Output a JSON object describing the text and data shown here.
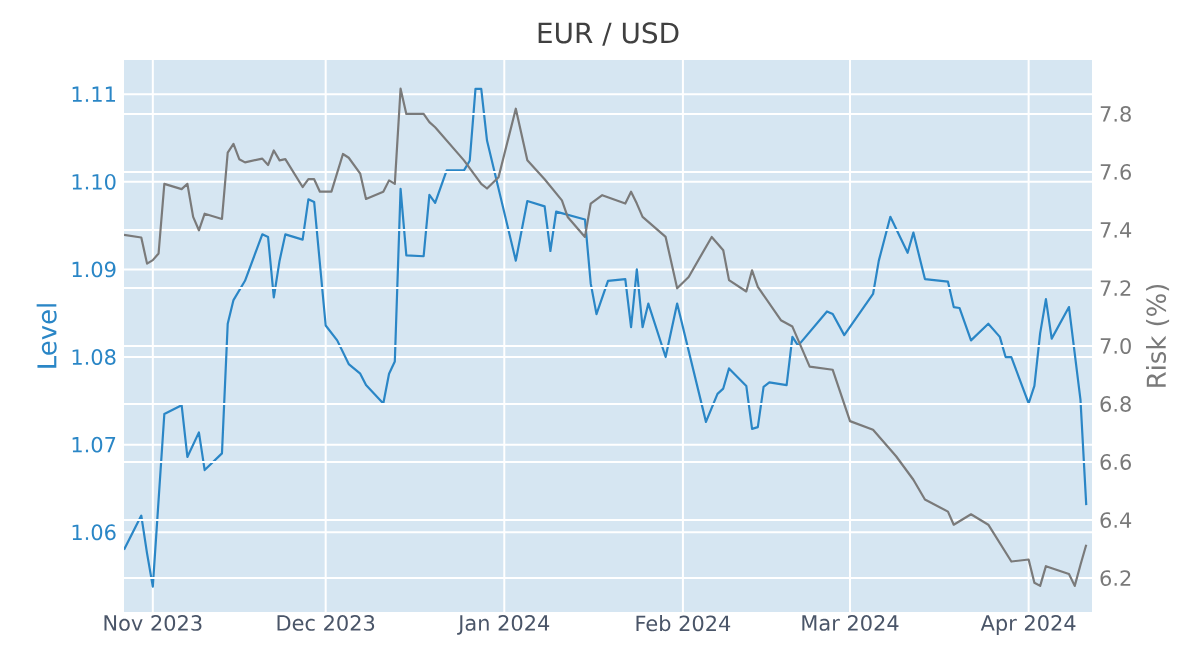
{
  "chart_data": {
    "type": "line",
    "title": "EUR / USD",
    "ylabel": "Level",
    "y2label": "Risk (%)",
    "xlim": [
      "2023-10-27",
      "2024-04-12"
    ],
    "xticks": [
      {
        "value": "2023-11-01",
        "label": "Nov 2023"
      },
      {
        "value": "2023-12-01",
        "label": "Dec 2023"
      },
      {
        "value": "2024-01-01",
        "label": "Jan 2024"
      },
      {
        "value": "2024-02-01",
        "label": "Feb 2024"
      },
      {
        "value": "2024-03-01",
        "label": "Mar 2024"
      },
      {
        "value": "2024-04-01",
        "label": "Apr 2024"
      }
    ],
    "ylim": [
      1.0509,
      1.1139
    ],
    "yticks": [
      1.06,
      1.07,
      1.08,
      1.09,
      {
        "value": 1.1,
        "label": "1.10"
      },
      1.11
    ],
    "y2lim": [
      6.083,
      7.986
    ],
    "y2ticks": [
      6.2,
      6.4,
      6.6,
      6.8,
      {
        "value": 7.0,
        "label": "7.0"
      },
      7.2,
      7.4,
      7.6,
      7.8
    ],
    "grid": true,
    "marker": "none",
    "line_style": "solid",
    "series": [
      {
        "color": "#2a86c6",
        "x": [
          "2023-10-27",
          "2023-10-30",
          "2023-10-31",
          "2023-11-01",
          "2023-11-03",
          "2023-11-06",
          "2023-11-07",
          "2023-11-09",
          "2023-11-10",
          "2023-11-13",
          "2023-11-14",
          "2023-11-15",
          "2023-11-17",
          "2023-11-20",
          "2023-11-21",
          "2023-11-22",
          "2023-11-23",
          "2023-11-24",
          "2023-11-27",
          "2023-11-28",
          "2023-11-29",
          "2023-12-01",
          "2023-12-03",
          "2023-12-05",
          "2023-12-07",
          "2023-12-08",
          "2023-12-11",
          "2023-12-12",
          "2023-12-13",
          "2023-12-14",
          "2023-12-15",
          "2023-12-18",
          "2023-12-19",
          "2023-12-20",
          "2023-12-22",
          "2023-12-25",
          "2023-12-26",
          "2023-12-27",
          "2023-12-28",
          "2023-12-29",
          "2024-01-03",
          "2024-01-05",
          "2024-01-08",
          "2024-01-09",
          "2024-01-10",
          "2024-01-15",
          "2024-01-16",
          "2024-01-17",
          "2024-01-19",
          "2024-01-22",
          "2024-01-23",
          "2024-01-24",
          "2024-01-25",
          "2024-01-26",
          "2024-01-29",
          "2024-01-31",
          "2024-02-05",
          "2024-02-07",
          "2024-02-08",
          "2024-02-09",
          "2024-02-12",
          "2024-02-13",
          "2024-02-14",
          "2024-02-15",
          "2024-02-16",
          "2024-02-19",
          "2024-02-20",
          "2024-02-21",
          "2024-02-26",
          "2024-02-27",
          "2024-02-29",
          "2024-03-05",
          "2024-03-06",
          "2024-03-08",
          "2024-03-11",
          "2024-03-12",
          "2024-03-14",
          "2024-03-18",
          "2024-03-19",
          "2024-03-20",
          "2024-03-22",
          "2024-03-25",
          "2024-03-27",
          "2024-03-28",
          "2024-03-29",
          "2024-04-01",
          "2024-04-02",
          "2024-04-03",
          "2024-04-04",
          "2024-04-05",
          "2024-04-08",
          "2024-04-10",
          "2024-04-11"
        ],
        "values": [
          1.058,
          1.0619,
          1.0576,
          1.0538,
          1.0735,
          1.0745,
          1.0686,
          1.0714,
          1.0671,
          1.069,
          1.0838,
          1.0865,
          1.0887,
          1.094,
          1.0937,
          1.0868,
          1.091,
          1.094,
          1.0934,
          1.098,
          1.0977,
          1.0836,
          1.0819,
          1.0792,
          1.0781,
          1.0768,
          1.0747,
          1.0781,
          1.0795,
          1.0992,
          1.0916,
          1.0915,
          1.0985,
          1.0976,
          1.1013,
          1.1013,
          1.1024,
          1.1106,
          1.1106,
          1.1047,
          1.091,
          1.0978,
          1.0972,
          1.0921,
          1.0966,
          1.0957,
          1.0884,
          1.0849,
          1.0887,
          1.0889,
          1.0834,
          1.09,
          1.0834,
          1.0861,
          1.08,
          1.0861,
          1.0726,
          1.0758,
          1.0764,
          1.0787,
          1.0767,
          1.0718,
          1.072,
          1.0766,
          1.0771,
          1.0768,
          1.0823,
          1.0813,
          1.0852,
          1.0849,
          1.0825,
          1.0872,
          1.091,
          1.096,
          1.0919,
          1.0942,
          1.0889,
          1.0886,
          1.0857,
          1.0856,
          1.0819,
          1.0838,
          1.0823,
          1.08,
          1.08,
          1.0747,
          1.0767,
          1.0827,
          1.0866,
          1.0821,
          1.0857,
          1.0751,
          1.0631
        ]
      },
      {
        "color": "#7a7a7a",
        "axis": "y2",
        "x": [
          "2023-10-27",
          "2023-10-30",
          "2023-10-31",
          "2023-11-01",
          "2023-11-02",
          "2023-11-03",
          "2023-11-06",
          "2023-11-07",
          "2023-11-08",
          "2023-11-09",
          "2023-11-10",
          "2023-11-13",
          "2023-11-14",
          "2023-11-15",
          "2023-11-16",
          "2023-11-17",
          "2023-11-20",
          "2023-11-21",
          "2023-11-22",
          "2023-11-23",
          "2023-11-24",
          "2023-11-27",
          "2023-11-28",
          "2023-11-29",
          "2023-11-30",
          "2023-12-02",
          "2023-12-04",
          "2023-12-05",
          "2023-12-07",
          "2023-12-08",
          "2023-12-11",
          "2023-12-12",
          "2023-12-13",
          "2023-12-14",
          "2023-12-15",
          "2023-12-18",
          "2023-12-19",
          "2023-12-20",
          "2023-12-25",
          "2023-12-28",
          "2023-12-29",
          "2023-12-31",
          "2024-01-03",
          "2024-01-05",
          "2024-01-08",
          "2024-01-11",
          "2024-01-12",
          "2024-01-15",
          "2024-01-16",
          "2024-01-18",
          "2024-01-22",
          "2024-01-23",
          "2024-01-24",
          "2024-01-25",
          "2024-01-29",
          "2024-01-31",
          "2024-02-02",
          "2024-02-06",
          "2024-02-08",
          "2024-02-09",
          "2024-02-12",
          "2024-02-13",
          "2024-02-14",
          "2024-02-18",
          "2024-02-20",
          "2024-02-23",
          "2024-02-27",
          "2024-03-01",
          "2024-03-05",
          "2024-03-09",
          "2024-03-12",
          "2024-03-14",
          "2024-03-18",
          "2024-03-19",
          "2024-03-22",
          "2024-03-25",
          "2024-03-29",
          "2024-04-01",
          "2024-04-02",
          "2024-04-03",
          "2024-04-04",
          "2024-04-08",
          "2024-04-09",
          "2024-04-10",
          "2024-04-11"
        ],
        "values": [
          7.383,
          7.374,
          7.284,
          7.296,
          7.319,
          7.559,
          7.541,
          7.559,
          7.445,
          7.399,
          7.456,
          7.438,
          7.667,
          7.697,
          7.644,
          7.633,
          7.646,
          7.624,
          7.674,
          7.64,
          7.644,
          7.548,
          7.575,
          7.575,
          7.532,
          7.532,
          7.662,
          7.649,
          7.594,
          7.507,
          7.532,
          7.571,
          7.559,
          7.887,
          7.8,
          7.8,
          7.772,
          7.754,
          7.64,
          7.559,
          7.543,
          7.582,
          7.818,
          7.64,
          7.575,
          7.502,
          7.445,
          7.376,
          7.491,
          7.52,
          7.491,
          7.532,
          7.491,
          7.445,
          7.376,
          7.199,
          7.238,
          7.376,
          7.33,
          7.227,
          7.188,
          7.261,
          7.204,
          7.089,
          7.067,
          6.929,
          6.918,
          6.741,
          6.711,
          6.62,
          6.539,
          6.471,
          6.429,
          6.384,
          6.42,
          6.384,
          6.257,
          6.264,
          6.184,
          6.173,
          6.241,
          6.214,
          6.173,
          6.246,
          6.315
        ]
      }
    ]
  }
}
